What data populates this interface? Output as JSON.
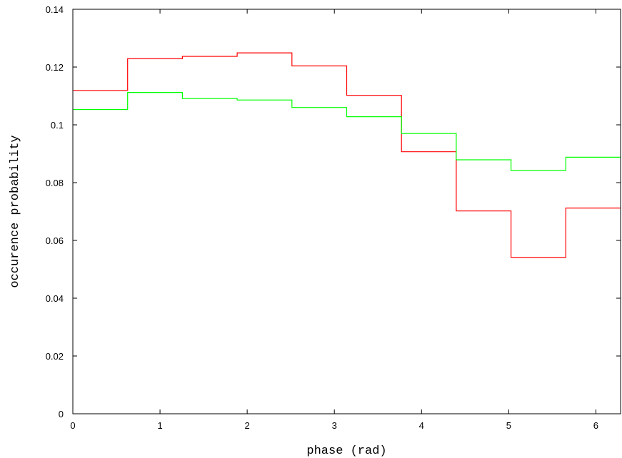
{
  "chart_data": {
    "type": "line",
    "step": true,
    "xlabel": "phase (rad)",
    "ylabel": "occurence probability",
    "xlim": [
      0,
      6.2832
    ],
    "ylim": [
      0,
      0.14
    ],
    "x_ticks": [
      "0",
      "1",
      "2",
      "3",
      "4",
      "5",
      "6"
    ],
    "y_ticks": [
      "0",
      "0.02",
      "0.04",
      "0.06",
      "0.08",
      "0.1",
      "0.12",
      "0.14"
    ],
    "grid": false,
    "legend": "none",
    "bin_edges": [
      0,
      0.6283,
      1.2566,
      1.885,
      2.5133,
      3.1416,
      3.7699,
      4.3982,
      5.0265,
      5.6549,
      6.2832
    ],
    "series": [
      {
        "color": "#ff0000",
        "values": [
          0.1119,
          0.1229,
          0.1237,
          0.1249,
          0.1204,
          0.1102,
          0.0907,
          0.0702,
          0.0541,
          0.0712
        ]
      },
      {
        "color": "#00ff00",
        "values": [
          0.1053,
          0.1112,
          0.1091,
          0.1086,
          0.106,
          0.1028,
          0.097,
          0.0879,
          0.0842,
          0.0888
        ]
      }
    ]
  }
}
